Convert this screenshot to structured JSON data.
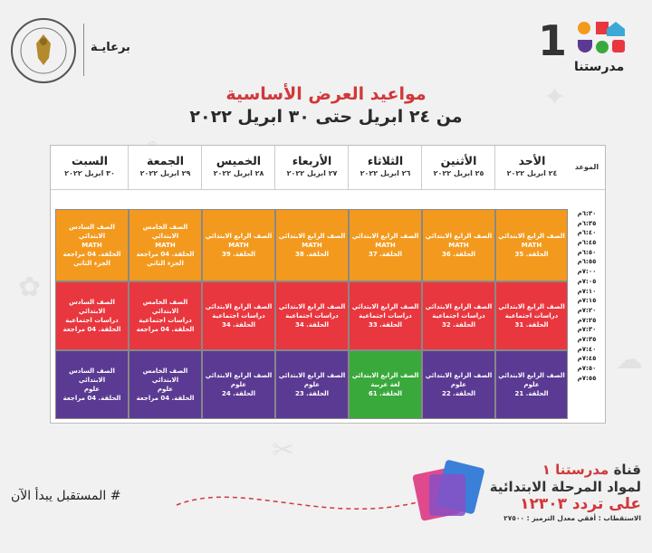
{
  "logo": {
    "number": "1",
    "name": "مدرستنا"
  },
  "sponsor": {
    "label": "برعايـة"
  },
  "title": "مواعيد العرض الأساسية",
  "subtitle": "من ٢٤ ابريل حتى ٣٠ ابريل ٢٠٢٢",
  "table": {
    "time_header": "الموعد",
    "days": [
      {
        "day": "الأحد",
        "date": "٢٤ ابريل ٢٠٢٢"
      },
      {
        "day": "الأثنين",
        "date": "٢٥ ابريل ٢٠٢٢"
      },
      {
        "day": "الثلاثاء",
        "date": "٢٦ ابريل ٢٠٢٢"
      },
      {
        "day": "الأربعاء",
        "date": "٢٧ ابريل ٢٠٢٢"
      },
      {
        "day": "الخميس",
        "date": "٢٨ ابريل ٢٠٢٢"
      },
      {
        "day": "الجمعة",
        "date": "٢٩ ابريل ٢٠٢٢"
      },
      {
        "day": "السبت",
        "date": "٣٠ ابريل ٢٠٢٢"
      }
    ],
    "times": [
      "٦:٣٠م",
      "٦:٣٥م",
      "٦:٤٠م",
      "٦:٤٥م",
      "٦:٥٠م",
      "٦:٥٥م",
      "٧:٠٠م",
      "٧:٠٥م",
      "٧:١٠م",
      "٧:١٥م",
      "٧:٢٠م",
      "٧:٢٥م",
      "٧:٣٠م",
      "٧:٣٥م",
      "٧:٤٠م",
      "٧:٤٥م",
      "٧:٥٠م",
      "٧:٥٥م"
    ],
    "blocks": [
      [
        [
          "الصف الرابع الابتدائي",
          "MATH",
          "الحلقة. 35"
        ],
        [
          "الصف الرابع الابتدائي",
          "MATH",
          "الحلقة. 36"
        ],
        [
          "الصف الرابع الابتدائي",
          "MATH",
          "الحلقة. 37"
        ],
        [
          "الصف الرابع الابتدائي",
          "MATH",
          "الحلقة. 38"
        ],
        [
          "الصف الرابع الابتدائي",
          "MATH",
          "الحلقة. 39"
        ],
        [
          "الصف الخامس الابتدائي",
          "MATH",
          "الحلقة. 04 مراجعة",
          "الجزء الثاني"
        ],
        [
          "الصف السادس الابتدائي",
          "MATH",
          "الحلقة. 04 مراجعة",
          "الجزء الثاني"
        ]
      ],
      [
        [
          "الصف الرابع الابتدائي",
          "دراسات اجتماعية",
          "الحلقة. 31"
        ],
        [
          "الصف الرابع الابتدائي",
          "دراسات اجتماعية",
          "الحلقة. 32"
        ],
        [
          "الصف الرابع الابتدائي",
          "دراسات اجتماعية",
          "الحلقة. 33"
        ],
        [
          "الصف الرابع الابتدائي",
          "دراسات اجتماعية",
          "الحلقة. 34"
        ],
        [
          "الصف الرابع الابتدائي",
          "دراسات اجتماعية",
          "الحلقة. 34"
        ],
        [
          "الصف الخامس الابتدائي",
          "دراسات اجتماعية",
          "الحلقة. 04 مراجعة"
        ],
        [
          "الصف السادس الابتدائي",
          "دراسات اجتماعية",
          "الحلقة. 04 مراجعة"
        ]
      ],
      [
        [
          "الصف الرابع الابتدائي",
          "علوم",
          "الحلقة. 21"
        ],
        [
          "الصف الرابع الابتدائي",
          "علوم",
          "الحلقة. 22"
        ],
        [
          "الصف الرابع الابتدائي",
          "لغة عربية",
          "الحلقة. 61"
        ],
        [
          "الصف الرابع الابتدائي",
          "علوم",
          "الحلقة. 23"
        ],
        [
          "الصف الرابع الابتدائي",
          "علوم",
          "الحلقة. 24"
        ],
        [
          "الصف الخامس الابتدائي",
          "علوم",
          "الحلقة. 04 مراجعة"
        ],
        [
          "الصف السادس الابتدائي",
          "علوم",
          "الحلقة. 04 مراجعة"
        ]
      ]
    ]
  },
  "footer": {
    "channel_prefix": "قناة ",
    "channel_name": "مدرستنا ١",
    "line2": "لمواد المرحلة الابتدائية",
    "line3": "على تردد ١٢٣٠٣",
    "line4": "الاستقطاب : أفقي معدل الترميز : ٢٧٥٠٠",
    "tagline": "# المستقبل يبدأ الآن"
  },
  "colors": {
    "orange": "#f39a1e",
    "red": "#e9373f",
    "purple": "#5b3a93",
    "green": "#3aa93c",
    "accent": "#d1383a"
  }
}
